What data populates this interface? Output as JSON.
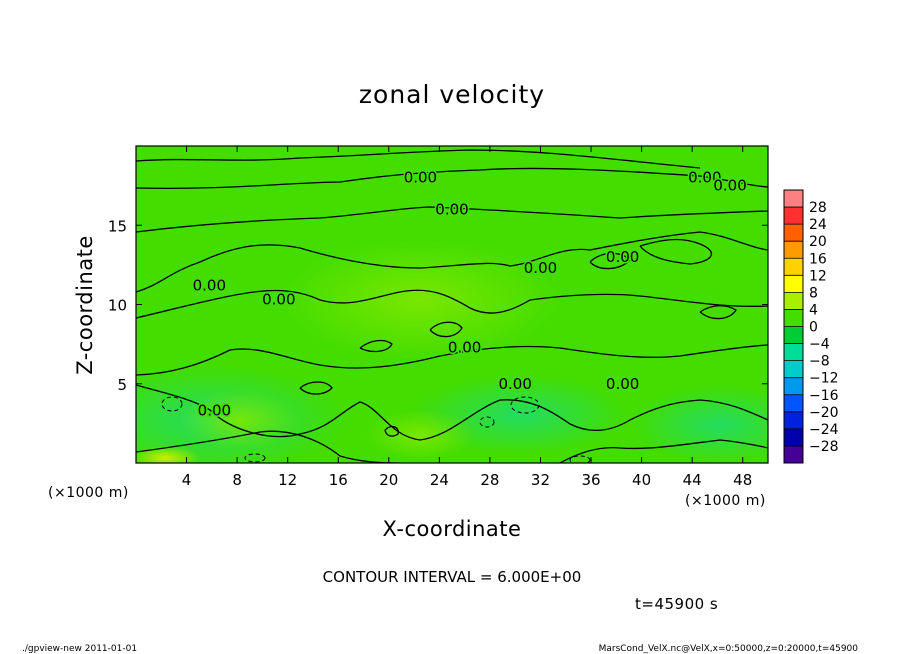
{
  "chart_data": {
    "type": "heatmap",
    "title": "zonal velocity",
    "xlabel": "X-coordinate",
    "ylabel": "Z-coordinate",
    "x_unit_label": "(×1000 m)",
    "y_unit_label": "(×1000 m)",
    "xlim": [
      0,
      50
    ],
    "ylim": [
      0,
      20
    ],
    "x_ticks": [
      4,
      8,
      12,
      16,
      20,
      24,
      28,
      32,
      36,
      40,
      44,
      48
    ],
    "y_ticks": [
      5,
      10,
      15
    ],
    "colorbar": {
      "labels": [
        "28",
        "24",
        "20",
        "16",
        "12",
        "8",
        "4",
        "0",
        "−4",
        "−8",
        "−12",
        "−16",
        "−20",
        "−24",
        "−28"
      ],
      "colors": [
        "#ff8080",
        "#ff3030",
        "#ff6000",
        "#ff9a00",
        "#ffd200",
        "#ffff00",
        "#aaee00",
        "#44dd00",
        "#00cc33",
        "#00dd99",
        "#00cccc",
        "#0099ee",
        "#0055ff",
        "#0022dd",
        "#0000aa",
        "#440099"
      ]
    },
    "contour_labels": [
      {
        "text": "0.00",
        "x": 22.5,
        "z": 18.0
      },
      {
        "text": "0.00",
        "x": 45.0,
        "z": 18.0
      },
      {
        "text": "0.00",
        "x": 47.0,
        "z": 17.5
      },
      {
        "text": "0.00",
        "x": 25.0,
        "z": 16.0
      },
      {
        "text": "0.00",
        "x": 38.5,
        "z": 13.0
      },
      {
        "text": "0.00",
        "x": 32.0,
        "z": 12.3
      },
      {
        "text": "0.00",
        "x": 5.8,
        "z": 11.2
      },
      {
        "text": "0.00",
        "x": 11.3,
        "z": 10.3
      },
      {
        "text": "0.00",
        "x": 26.0,
        "z": 7.3
      },
      {
        "text": "0.00",
        "x": 30.0,
        "z": 5.0
      },
      {
        "text": "0.00",
        "x": 38.5,
        "z": 5.0
      },
      {
        "text": "0.00",
        "x": 6.2,
        "z": 3.3
      }
    ],
    "contour_interval_text": "CONTOUR INTERVAL = 6.000E+00",
    "time_text": "t=45900 s"
  },
  "footer": {
    "left": "./gpview-new   2011-01-01",
    "right": "MarsCond_VelX.nc@VelX,x=0:50000,z=0:20000,t=45900"
  }
}
